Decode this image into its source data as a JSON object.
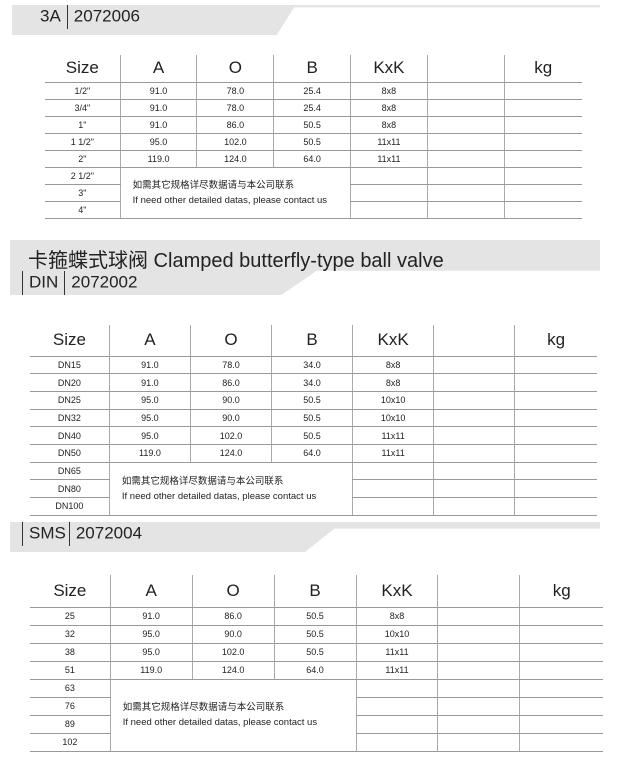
{
  "sections": [
    {
      "standard": "3A",
      "code": "2072006",
      "headers": [
        "Size",
        "A",
        "O",
        "B",
        "KxK",
        "",
        "kg"
      ],
      "rows": [
        [
          "1/2\"",
          "91.0",
          "78.0",
          "25.4",
          "8x8"
        ],
        [
          "3/4\"",
          "91.0",
          "78.0",
          "25.4",
          "8x8"
        ],
        [
          "1\"",
          "91.0",
          "86.0",
          "50.5",
          "8x8"
        ],
        [
          "1 1/2\"",
          "95.0",
          "102.0",
          "50.5",
          "11x11"
        ],
        [
          "2\"",
          "119.0",
          "124.0",
          "64.0",
          "11x11"
        ],
        [
          "2 1/2\""
        ],
        [
          "3\""
        ],
        [
          "4\""
        ]
      ],
      "note_cn": "如需其它规格详尽数据请与本公司联系",
      "note_en": "If need other detailed datas, please contact us"
    },
    {
      "title": "卡箍蝶式球阀 Clamped butterfly-type ball valve",
      "standard": "DIN",
      "code": "2072002",
      "headers": [
        "Size",
        "A",
        "O",
        "B",
        "KxK",
        "",
        "kg"
      ],
      "rows": [
        [
          "DN15",
          "91.0",
          "78.0",
          "34.0",
          "8x8"
        ],
        [
          "DN20",
          "91.0",
          "86.0",
          "34.0",
          "8x8"
        ],
        [
          "DN25",
          "95.0",
          "90.0",
          "50.5",
          "10x10"
        ],
        [
          "DN32",
          "95.0",
          "90.0",
          "50.5",
          "10x10"
        ],
        [
          "DN40",
          "95.0",
          "102.0",
          "50.5",
          "11x11"
        ],
        [
          "DN50",
          "119.0",
          "124.0",
          "64.0",
          "11x11"
        ],
        [
          "DN65"
        ],
        [
          "DN80"
        ],
        [
          "DN100"
        ]
      ],
      "note_cn": "如需其它规格详尽数据请与本公司联系",
      "note_en": "If need other detailed datas, please contact us"
    },
    {
      "standard": "SMS",
      "code": "2072004",
      "headers": [
        "Size",
        "A",
        "O",
        "B",
        "KxK",
        "",
        "kg"
      ],
      "rows": [
        [
          "25",
          "91.0",
          "86.0",
          "50.5",
          "8x8"
        ],
        [
          "32",
          "95.0",
          "90.0",
          "50.5",
          "10x10"
        ],
        [
          "38",
          "95.0",
          "102.0",
          "50.5",
          "11x11"
        ],
        [
          "51",
          "119.0",
          "124.0",
          "64.0",
          "11x11"
        ],
        [
          "63"
        ],
        [
          "76"
        ],
        [
          "89"
        ],
        [
          "102"
        ]
      ],
      "note_cn": "如需其它规格详尽数据请与本公司联系",
      "note_en": "If need other detailed datas, please contact us"
    }
  ]
}
